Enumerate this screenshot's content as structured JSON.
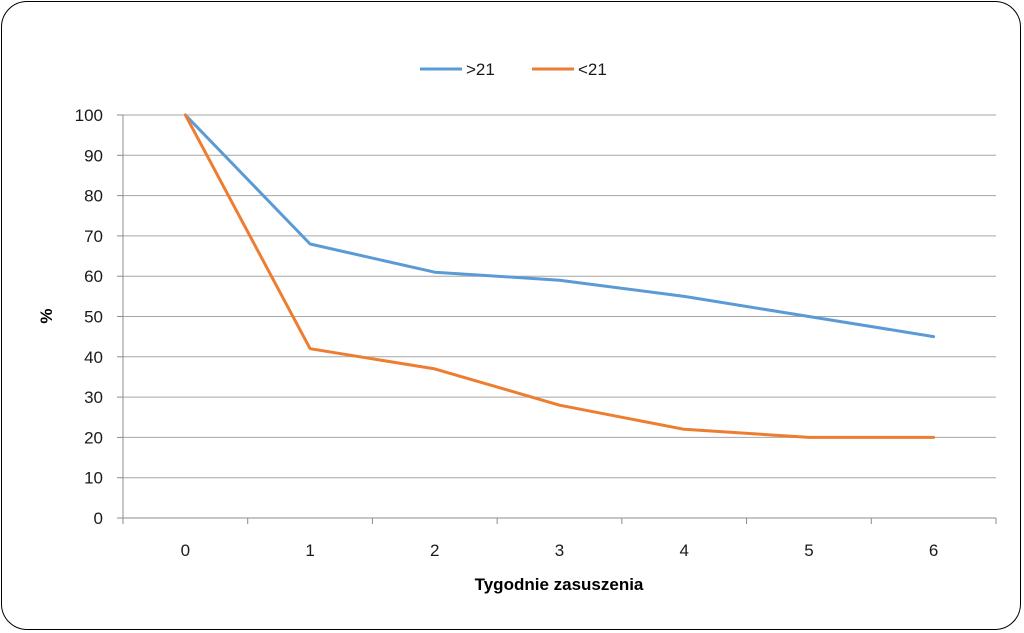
{
  "chart_data": {
    "type": "line",
    "title": "",
    "xlabel": "Tygodnie zasuszenia",
    "ylabel": "%",
    "x": [
      0,
      1,
      2,
      3,
      4,
      5,
      6
    ],
    "ylim": [
      0,
      100
    ],
    "yticks": [
      0,
      10,
      20,
      30,
      40,
      50,
      60,
      70,
      80,
      90,
      100
    ],
    "grid": true,
    "legend_position": "top",
    "series": [
      {
        "name": ">21",
        "color": "#5b9bd5",
        "values": [
          100,
          68,
          61,
          59,
          55,
          50,
          45
        ]
      },
      {
        "name": "<21",
        "color": "#ed7d31",
        "values": [
          100,
          42,
          37,
          28,
          22,
          20,
          20
        ]
      }
    ]
  }
}
